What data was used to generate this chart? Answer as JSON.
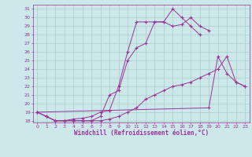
{
  "xlabel": "Windchill (Refroidissement éolien,°C)",
  "x_values": [
    0,
    1,
    2,
    3,
    4,
    5,
    6,
    7,
    8,
    9,
    10,
    11,
    12,
    13,
    14,
    15,
    16,
    17,
    18,
    19,
    20,
    21,
    22,
    23
  ],
  "line1": [
    19,
    18.5,
    18,
    18,
    18,
    18,
    18,
    18,
    18.2,
    18.5,
    19,
    19.5,
    20.5,
    21,
    21.5,
    22,
    22.2,
    22.5,
    23,
    23.5,
    24,
    25.5,
    22.5,
    22
  ],
  "line2": [
    19,
    18.5,
    18,
    18,
    18,
    18,
    18,
    18.5,
    21,
    21.5,
    25,
    26.5,
    27,
    29.5,
    29.5,
    29,
    29.2,
    30,
    29,
    28.5,
    null,
    null,
    null,
    null
  ],
  "line3": [
    19,
    18.5,
    18,
    18,
    18.2,
    18.3,
    18.5,
    19,
    19.2,
    22,
    26,
    29.5,
    29.5,
    29.5,
    29.5,
    31,
    30,
    29,
    28,
    null,
    null,
    null,
    null,
    null
  ],
  "line4": [
    19,
    null,
    null,
    null,
    null,
    null,
    null,
    null,
    null,
    null,
    null,
    null,
    null,
    null,
    null,
    null,
    null,
    null,
    null,
    19.5,
    25.5,
    23.5,
    22.5,
    22
  ],
  "color": "#993399",
  "bg_color": "#cce8e8",
  "grid_color": "#aacccc",
  "ylim": [
    17.8,
    31.5
  ],
  "xlim": [
    -0.5,
    23.5
  ],
  "yticks": [
    18,
    19,
    20,
    21,
    22,
    23,
    24,
    25,
    26,
    27,
    28,
    29,
    30,
    31
  ],
  "xticks": [
    0,
    1,
    2,
    3,
    4,
    5,
    6,
    7,
    8,
    9,
    10,
    11,
    12,
    13,
    14,
    15,
    16,
    17,
    18,
    19,
    20,
    21,
    22,
    23
  ]
}
